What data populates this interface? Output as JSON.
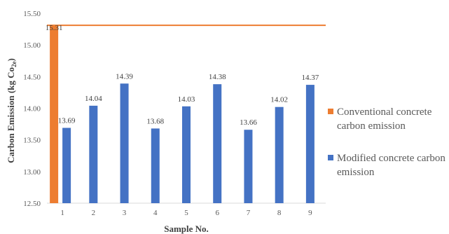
{
  "chart_data": {
    "type": "bar",
    "categories": [
      "1",
      "2",
      "3",
      "4",
      "5",
      "6",
      "7",
      "8",
      "9"
    ],
    "ylim": [
      12.5,
      15.5
    ],
    "ytick_step": 0.5,
    "ytick_labels": [
      "12.50",
      "13.00",
      "13.50",
      "14.00",
      "14.50",
      "15.00",
      "15.50"
    ],
    "xlabel": "Sample No.",
    "ylabel": "Carbon Emission (kg Co",
    "ylabel_sub": "2e",
    "ylabel_close": ")",
    "grid": false,
    "legend_position": "right",
    "series": [
      {
        "name": "Conventional concrete carbon emission",
        "color": "#ED7D31",
        "reference_line": 15.31,
        "values": [
          15.31,
          null,
          null,
          null,
          null,
          null,
          null,
          null,
          null
        ],
        "labels": [
          "15.31",
          null,
          null,
          null,
          null,
          null,
          null,
          null,
          null
        ]
      },
      {
        "name": "Modified concrete carbon emission",
        "color": "#4472C4",
        "values": [
          13.69,
          14.04,
          14.39,
          13.68,
          14.03,
          14.38,
          13.66,
          14.02,
          14.37
        ],
        "labels": [
          "13.69",
          "14.04",
          "14.39",
          "13.68",
          "14.03",
          "14.38",
          "13.66",
          "14.02",
          "14.37"
        ]
      }
    ]
  }
}
